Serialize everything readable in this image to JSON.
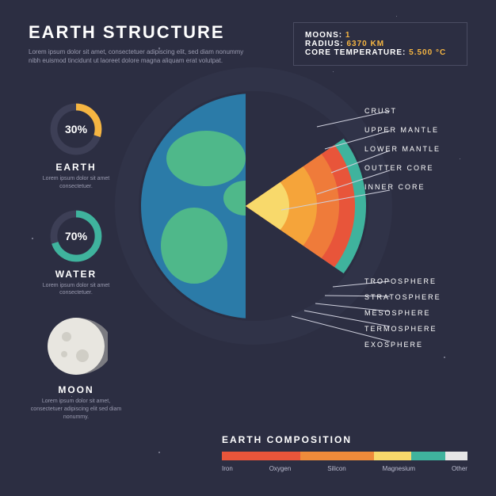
{
  "background_color": "#2c2e42",
  "title": "EARTH STRUCTURE",
  "subtitle": "Lorem ipsum dolor sit amet, consectetuer adipiscing elit, sed diam nonummy nibh euismod tincidunt ut laoreet dolore magna aliquam erat volutpat.",
  "facts": [
    {
      "label": "MOONS:",
      "value": "1"
    },
    {
      "label": "RADIUS:",
      "value": "6370 KM"
    },
    {
      "label": "CORE TEMPERATURE:",
      "value": "5.500 °C"
    }
  ],
  "facts_box": {
    "border_color": "#4a4c62",
    "value_color": "#f5b542"
  },
  "donuts": [
    {
      "percent": 30,
      "label": "EARTH",
      "desc": "Lorem ipsum dolor sit amet consectetuer.",
      "color": "#f5b542",
      "track_color": "#3d3f56"
    },
    {
      "percent": 70,
      "label": "WATER",
      "desc": "Lorem ipsum dolor sit amet consectetuer.",
      "color": "#3fb39d",
      "track_color": "#3d3f56"
    }
  ],
  "moon": {
    "label": "MOON",
    "desc": "Lorem ipsum dolor sit amet, consectetuer adipiscing elit sed diam nonummy.",
    "base_color": "#e8e6e0",
    "shadow_color": "#c9c7c0",
    "crater_color": "#d0cec6"
  },
  "earth": {
    "layers": [
      {
        "name": "CRUST",
        "color": "#3fb39d",
        "r": 142
      },
      {
        "name": "UPPER MANTLE",
        "color": "#e8553a",
        "r": 128
      },
      {
        "name": "LOWER MANTLE",
        "color": "#ef7b3a",
        "r": 108
      },
      {
        "name": "OUTTER CORE",
        "color": "#f5a43a",
        "r": 80
      },
      {
        "name": "INNER CORE",
        "color": "#f8d96b",
        "r": 45
      }
    ],
    "ocean_color": "#2b7ba8",
    "land_color": "#4fb88a",
    "atmosphere_color": "#3a3c52"
  },
  "atmosphere_layers": [
    "TROPOSPHERE",
    "STRATOSPHERE",
    "MESOSPHERE",
    "TERMOSPHERE",
    "EXOSPHERE"
  ],
  "composition": {
    "title": "EARTH COMPOSITION",
    "segments": [
      {
        "label": "Iron",
        "pct": 32,
        "color": "#e8553a"
      },
      {
        "label": "Oxygen",
        "pct": 30,
        "color": "#ef8b3a"
      },
      {
        "label": "Silicon",
        "pct": 15,
        "color": "#f8d96b"
      },
      {
        "label": "Magnesium",
        "pct": 14,
        "color": "#3fb39d"
      },
      {
        "label": "Other",
        "pct": 9,
        "color": "#e6e6e6"
      }
    ]
  },
  "muted_text_color": "#9a9bb0",
  "title_fontsize": 22,
  "label_fontsize": 9
}
